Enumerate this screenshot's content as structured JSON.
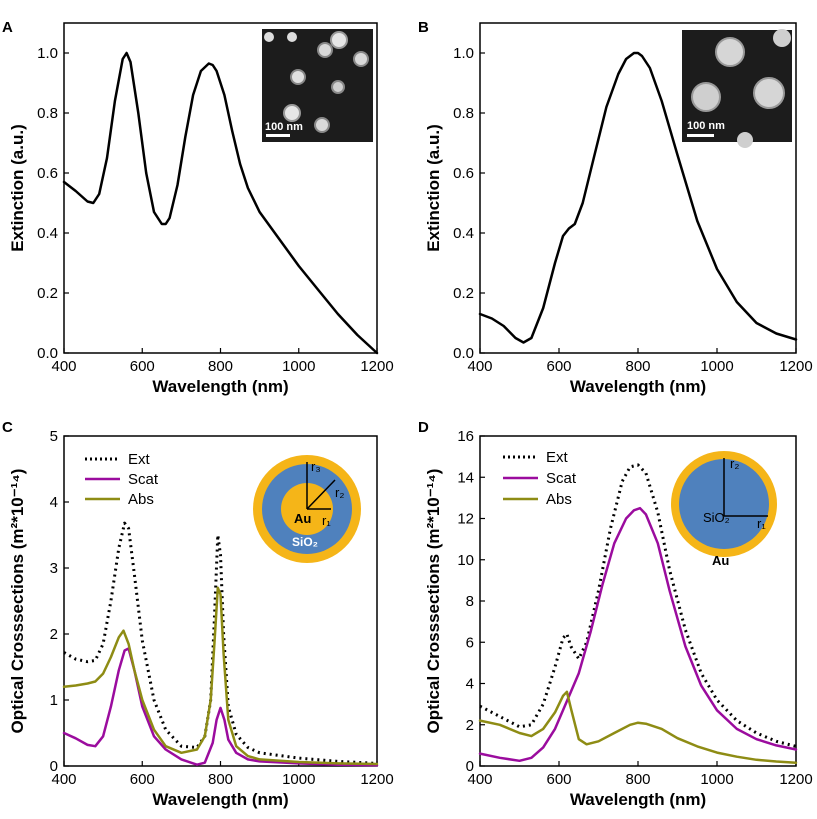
{
  "chart_data": [
    {
      "panel": "A",
      "type": "line",
      "xlabel": "Wavelength (nm)",
      "ylabel": "Extinction (a.u.)",
      "xlim": [
        400,
        1200
      ],
      "ylim": [
        0,
        1.1
      ],
      "xticks": [
        400,
        600,
        800,
        1000,
        1200
      ],
      "yticks": [
        0.0,
        0.2,
        0.4,
        0.6,
        0.8,
        1.0
      ],
      "ytick_labels": [
        "0.0",
        "0.2",
        "0.4",
        "0.6",
        "0.8",
        "1.0"
      ],
      "inset_scale_label": "100 nm",
      "series": [
        {
          "color": "#000000",
          "style": "solid",
          "x": [
            400,
            430,
            460,
            475,
            490,
            510,
            530,
            550,
            560,
            570,
            590,
            610,
            630,
            650,
            660,
            670,
            690,
            710,
            730,
            750,
            770,
            780,
            790,
            810,
            830,
            850,
            870,
            900,
            950,
            1000,
            1050,
            1100,
            1150,
            1200
          ],
          "y": [
            0.57,
            0.54,
            0.505,
            0.5,
            0.53,
            0.65,
            0.84,
            0.98,
            1.0,
            0.97,
            0.8,
            0.6,
            0.47,
            0.43,
            0.43,
            0.45,
            0.56,
            0.72,
            0.86,
            0.94,
            0.965,
            0.96,
            0.94,
            0.86,
            0.74,
            0.63,
            0.55,
            0.47,
            0.38,
            0.29,
            0.21,
            0.13,
            0.06,
            0.0
          ]
        }
      ]
    },
    {
      "panel": "B",
      "type": "line",
      "xlabel": "Wavelength (nm)",
      "ylabel": "Extinction (a.u.)",
      "xlim": [
        400,
        1200
      ],
      "ylim": [
        0,
        1.1
      ],
      "xticks": [
        400,
        600,
        800,
        1000,
        1200
      ],
      "yticks": [
        0.0,
        0.2,
        0.4,
        0.6,
        0.8,
        1.0
      ],
      "ytick_labels": [
        "0.0",
        "0.2",
        "0.4",
        "0.6",
        "0.8",
        "1.0"
      ],
      "inset_scale_label": "100 nm",
      "series": [
        {
          "color": "#000000",
          "style": "solid",
          "x": [
            400,
            430,
            460,
            490,
            510,
            530,
            560,
            590,
            610,
            625,
            640,
            660,
            690,
            720,
            750,
            770,
            790,
            800,
            810,
            830,
            860,
            900,
            950,
            1000,
            1050,
            1100,
            1150,
            1200
          ],
          "y": [
            0.13,
            0.115,
            0.09,
            0.05,
            0.035,
            0.05,
            0.15,
            0.3,
            0.39,
            0.415,
            0.43,
            0.5,
            0.66,
            0.82,
            0.93,
            0.98,
            1.0,
            1.0,
            0.99,
            0.95,
            0.84,
            0.66,
            0.44,
            0.28,
            0.17,
            0.1,
            0.065,
            0.045
          ]
        }
      ]
    },
    {
      "panel": "C",
      "type": "line",
      "xlabel": "Wavelength (nm)",
      "ylabel": "Optical Crosssections (m²*10⁻¹⁴)",
      "xlim": [
        400,
        1200
      ],
      "ylim": [
        0,
        5
      ],
      "xticks": [
        400,
        600,
        800,
        1000,
        1200
      ],
      "yticks": [
        0,
        1,
        2,
        3,
        4,
        5
      ],
      "ytick_labels": [
        "0",
        "1",
        "2",
        "3",
        "4",
        "5"
      ],
      "legend": [
        "Ext",
        "Scat",
        "Abs"
      ],
      "inset_labels": {
        "core": "Au",
        "shell": "SiO₂",
        "r1": "r₁",
        "r2": "r₂",
        "r3": "r₃"
      },
      "series": [
        {
          "name": "Ext",
          "color": "#000000",
          "style": "dotted",
          "x": [
            400,
            430,
            460,
            480,
            500,
            520,
            540,
            555,
            565,
            580,
            600,
            630,
            660,
            700,
            740,
            760,
            775,
            785,
            793,
            800,
            808,
            820,
            840,
            870,
            900,
            1000,
            1100,
            1200
          ],
          "y": [
            1.72,
            1.62,
            1.58,
            1.6,
            1.85,
            2.5,
            3.3,
            3.68,
            3.6,
            2.9,
            1.9,
            1.0,
            0.55,
            0.3,
            0.28,
            0.45,
            1.0,
            2.3,
            3.5,
            3.2,
            2.0,
            0.9,
            0.48,
            0.28,
            0.2,
            0.12,
            0.07,
            0.04
          ]
        },
        {
          "name": "Scat",
          "color": "#9b0c9e",
          "style": "solid",
          "x": [
            400,
            430,
            460,
            480,
            500,
            520,
            540,
            555,
            565,
            580,
            600,
            630,
            660,
            700,
            740,
            760,
            780,
            790,
            800,
            810,
            820,
            840,
            870,
            900,
            1000,
            1100,
            1200
          ],
          "y": [
            0.5,
            0.42,
            0.32,
            0.3,
            0.45,
            0.9,
            1.45,
            1.75,
            1.78,
            1.45,
            0.9,
            0.45,
            0.25,
            0.1,
            0.02,
            0.05,
            0.35,
            0.7,
            0.88,
            0.7,
            0.4,
            0.2,
            0.1,
            0.07,
            0.04,
            0.02,
            0.01
          ]
        },
        {
          "name": "Abs",
          "color": "#8e8c14",
          "style": "solid",
          "x": [
            400,
            430,
            460,
            480,
            500,
            520,
            540,
            552,
            565,
            580,
            600,
            630,
            660,
            700,
            740,
            760,
            775,
            785,
            793,
            800,
            808,
            820,
            840,
            870,
            900,
            1000,
            1100,
            1200
          ],
          "y": [
            1.2,
            1.22,
            1.25,
            1.28,
            1.4,
            1.65,
            1.95,
            2.05,
            1.85,
            1.45,
            1.0,
            0.55,
            0.3,
            0.2,
            0.25,
            0.45,
            1.0,
            1.9,
            2.7,
            2.6,
            1.7,
            0.7,
            0.3,
            0.15,
            0.1,
            0.06,
            0.04,
            0.03
          ]
        }
      ]
    },
    {
      "panel": "D",
      "type": "line",
      "xlabel": "Wavelength (nm)",
      "ylabel": "Optical Crosssections (m²*10⁻¹⁴)",
      "xlim": [
        400,
        1200
      ],
      "ylim": [
        0,
        16
      ],
      "xticks": [
        400,
        600,
        800,
        1000,
        1200
      ],
      "yticks": [
        0,
        2,
        4,
        6,
        8,
        10,
        12,
        14,
        16
      ],
      "ytick_labels": [
        "0",
        "2",
        "4",
        "6",
        "8",
        "10",
        "12",
        "14",
        "16"
      ],
      "legend": [
        "Ext",
        "Scat",
        "Abs"
      ],
      "inset_labels": {
        "core": "SiO₂",
        "shell": "Au",
        "r1": "r₁",
        "r2": "r₂"
      },
      "series": [
        {
          "name": "Ext",
          "color": "#000000",
          "style": "dotted",
          "x": [
            400,
            450,
            500,
            530,
            560,
            590,
            610,
            620,
            630,
            650,
            670,
            700,
            730,
            760,
            780,
            800,
            820,
            850,
            880,
            920,
            960,
            1000,
            1050,
            1100,
            1150,
            1200
          ],
          "y": [
            2.9,
            2.4,
            1.9,
            2.0,
            3.0,
            4.8,
            6.2,
            6.4,
            5.8,
            5.2,
            6.0,
            8.5,
            11.5,
            13.8,
            14.5,
            14.6,
            14.2,
            12.3,
            9.5,
            6.6,
            4.5,
            3.2,
            2.2,
            1.6,
            1.2,
            0.95
          ]
        },
        {
          "name": "Scat",
          "color": "#9b0c9e",
          "style": "solid",
          "x": [
            400,
            450,
            500,
            530,
            560,
            590,
            610,
            630,
            650,
            680,
            710,
            740,
            770,
            790,
            805,
            820,
            850,
            880,
            920,
            960,
            1000,
            1050,
            1100,
            1150,
            1200
          ],
          "y": [
            0.6,
            0.4,
            0.25,
            0.4,
            0.9,
            1.8,
            2.7,
            3.6,
            4.5,
            6.5,
            8.8,
            10.8,
            12.0,
            12.4,
            12.5,
            12.2,
            10.8,
            8.5,
            5.8,
            3.9,
            2.7,
            1.8,
            1.3,
            1.0,
            0.8
          ]
        },
        {
          "name": "Abs",
          "color": "#8e8c14",
          "style": "solid",
          "x": [
            400,
            450,
            500,
            530,
            560,
            590,
            610,
            620,
            630,
            650,
            670,
            700,
            740,
            780,
            800,
            820,
            860,
            900,
            950,
            1000,
            1050,
            1100,
            1150,
            1200
          ],
          "y": [
            2.2,
            2.0,
            1.6,
            1.45,
            1.8,
            2.6,
            3.4,
            3.6,
            2.8,
            1.3,
            1.05,
            1.2,
            1.6,
            2.0,
            2.1,
            2.05,
            1.8,
            1.35,
            0.95,
            0.65,
            0.45,
            0.3,
            0.22,
            0.16
          ]
        }
      ]
    }
  ]
}
